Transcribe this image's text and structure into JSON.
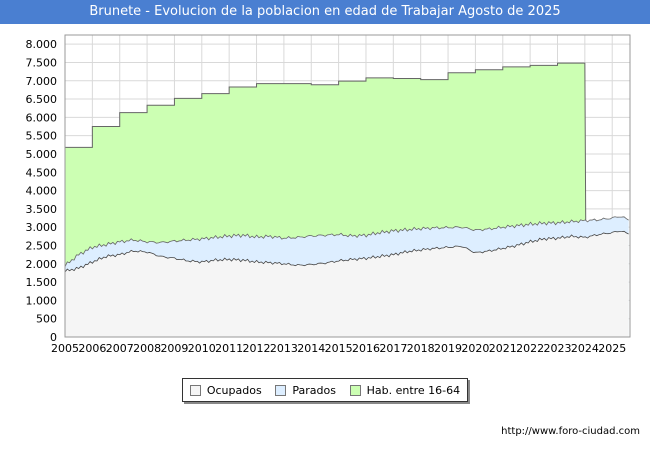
{
  "chart_data": {
    "type": "area",
    "title": "Brunete - Evolucion de la poblacion en edad de Trabajar Agosto de 2025",
    "xlabel": "",
    "ylabel": "",
    "ylim": [
      0,
      8250
    ],
    "xlim": [
      2005,
      2025.65
    ],
    "grid": true,
    "y_ticks": [
      {
        "value": 0,
        "label": "0"
      },
      {
        "value": 500,
        "label": "500"
      },
      {
        "value": 1000,
        "label": "1.000"
      },
      {
        "value": 1500,
        "label": "1.500"
      },
      {
        "value": 2000,
        "label": "2.000"
      },
      {
        "value": 2500,
        "label": "2.500"
      },
      {
        "value": 3000,
        "label": "3.000"
      },
      {
        "value": 3500,
        "label": "3.500"
      },
      {
        "value": 4000,
        "label": "4.000"
      },
      {
        "value": 4500,
        "label": "4.500"
      },
      {
        "value": 5000,
        "label": "5.000"
      },
      {
        "value": 5500,
        "label": "5.500"
      },
      {
        "value": 6000,
        "label": "6.000"
      },
      {
        "value": 6500,
        "label": "6.500"
      },
      {
        "value": 7000,
        "label": "7.000"
      },
      {
        "value": 7500,
        "label": "7.500"
      },
      {
        "value": 8000,
        "label": "8.000"
      }
    ],
    "x_ticks": [
      "2005",
      "2006",
      "2007",
      "2008",
      "2009",
      "2010",
      "2011",
      "2012",
      "2013",
      "2014",
      "2015",
      "2016",
      "2017",
      "2018",
      "2019",
      "2020",
      "2021",
      "2022",
      "2023",
      "2024",
      "2025"
    ],
    "series": [
      {
        "name": "Hab. entre 16-64",
        "color": "#ccffb3",
        "stroke": "#666666",
        "yearly_values": [
          5180,
          5750,
          6130,
          6330,
          6520,
          6650,
          6830,
          6920,
          6920,
          6890,
          6990,
          7080,
          7060,
          7030,
          7220,
          7300,
          7380,
          7420,
          7480
        ]
      },
      {
        "name": "Parados",
        "color": "#ddeeff",
        "stroke": "#666666",
        "points": [
          [
            2005.0,
            1950
          ],
          [
            2005.5,
            2250
          ],
          [
            2006.0,
            2450
          ],
          [
            2007.0,
            2600
          ],
          [
            2007.5,
            2650
          ],
          [
            2008.0,
            2600
          ],
          [
            2008.5,
            2580
          ],
          [
            2009.0,
            2620
          ],
          [
            2009.5,
            2650
          ],
          [
            2010.0,
            2680
          ],
          [
            2010.5,
            2720
          ],
          [
            2011.0,
            2760
          ],
          [
            2011.5,
            2780
          ],
          [
            2012.0,
            2730
          ],
          [
            2012.5,
            2750
          ],
          [
            2013.0,
            2700
          ],
          [
            2013.5,
            2720
          ],
          [
            2014.0,
            2760
          ],
          [
            2014.5,
            2780
          ],
          [
            2015.0,
            2800
          ],
          [
            2015.5,
            2760
          ],
          [
            2016.0,
            2780
          ],
          [
            2016.5,
            2850
          ],
          [
            2017.0,
            2900
          ],
          [
            2017.5,
            2930
          ],
          [
            2018.0,
            2960
          ],
          [
            2018.5,
            2980
          ],
          [
            2019.0,
            2990
          ],
          [
            2019.5,
            3000
          ],
          [
            2020.0,
            2920
          ],
          [
            2020.5,
            2950
          ],
          [
            2021.0,
            3000
          ],
          [
            2021.5,
            3040
          ],
          [
            2022.0,
            3080
          ],
          [
            2022.5,
            3110
          ],
          [
            2023.0,
            3120
          ],
          [
            2023.5,
            3150
          ],
          [
            2024.0,
            3180
          ],
          [
            2024.5,
            3200
          ],
          [
            2025.0,
            3250
          ],
          [
            2025.3,
            3300
          ],
          [
            2025.6,
            3200
          ]
        ]
      },
      {
        "name": "Ocupados",
        "color": "#f5f5f5",
        "stroke": "#444444",
        "points": [
          [
            2005.0,
            1800
          ],
          [
            2005.5,
            1880
          ],
          [
            2006.0,
            2050
          ],
          [
            2006.5,
            2200
          ],
          [
            2007.0,
            2250
          ],
          [
            2007.5,
            2350
          ],
          [
            2008.0,
            2320
          ],
          [
            2008.5,
            2200
          ],
          [
            2009.0,
            2150
          ],
          [
            2009.5,
            2080
          ],
          [
            2010.0,
            2050
          ],
          [
            2010.5,
            2100
          ],
          [
            2011.0,
            2120
          ],
          [
            2011.5,
            2100
          ],
          [
            2012.0,
            2050
          ],
          [
            2012.5,
            2030
          ],
          [
            2013.0,
            2000
          ],
          [
            2013.5,
            1960
          ],
          [
            2014.0,
            1980
          ],
          [
            2014.5,
            2020
          ],
          [
            2015.0,
            2080
          ],
          [
            2015.5,
            2120
          ],
          [
            2016.0,
            2150
          ],
          [
            2016.5,
            2200
          ],
          [
            2017.0,
            2250
          ],
          [
            2017.5,
            2330
          ],
          [
            2018.0,
            2380
          ],
          [
            2018.5,
            2420
          ],
          [
            2019.0,
            2450
          ],
          [
            2019.5,
            2480
          ],
          [
            2020.0,
            2300
          ],
          [
            2020.5,
            2350
          ],
          [
            2021.0,
            2420
          ],
          [
            2021.5,
            2500
          ],
          [
            2022.0,
            2600
          ],
          [
            2022.5,
            2680
          ],
          [
            2023.0,
            2700
          ],
          [
            2023.5,
            2750
          ],
          [
            2024.0,
            2720
          ],
          [
            2024.5,
            2800
          ],
          [
            2025.0,
            2850
          ],
          [
            2025.3,
            2900
          ],
          [
            2025.6,
            2820
          ]
        ]
      }
    ],
    "legend": {
      "placement": "bottom-center",
      "entries": [
        "Ocupados",
        "Parados",
        "Hab. entre 16-64"
      ]
    }
  },
  "legend_items": [
    {
      "label": "Ocupados",
      "color": "#f5f5f5"
    },
    {
      "label": "Parados",
      "color": "#ddeeff"
    },
    {
      "label": "Hab. entre 16-64",
      "color": "#ccffb3"
    }
  ],
  "source_text": "http://www.foro-ciudad.com"
}
